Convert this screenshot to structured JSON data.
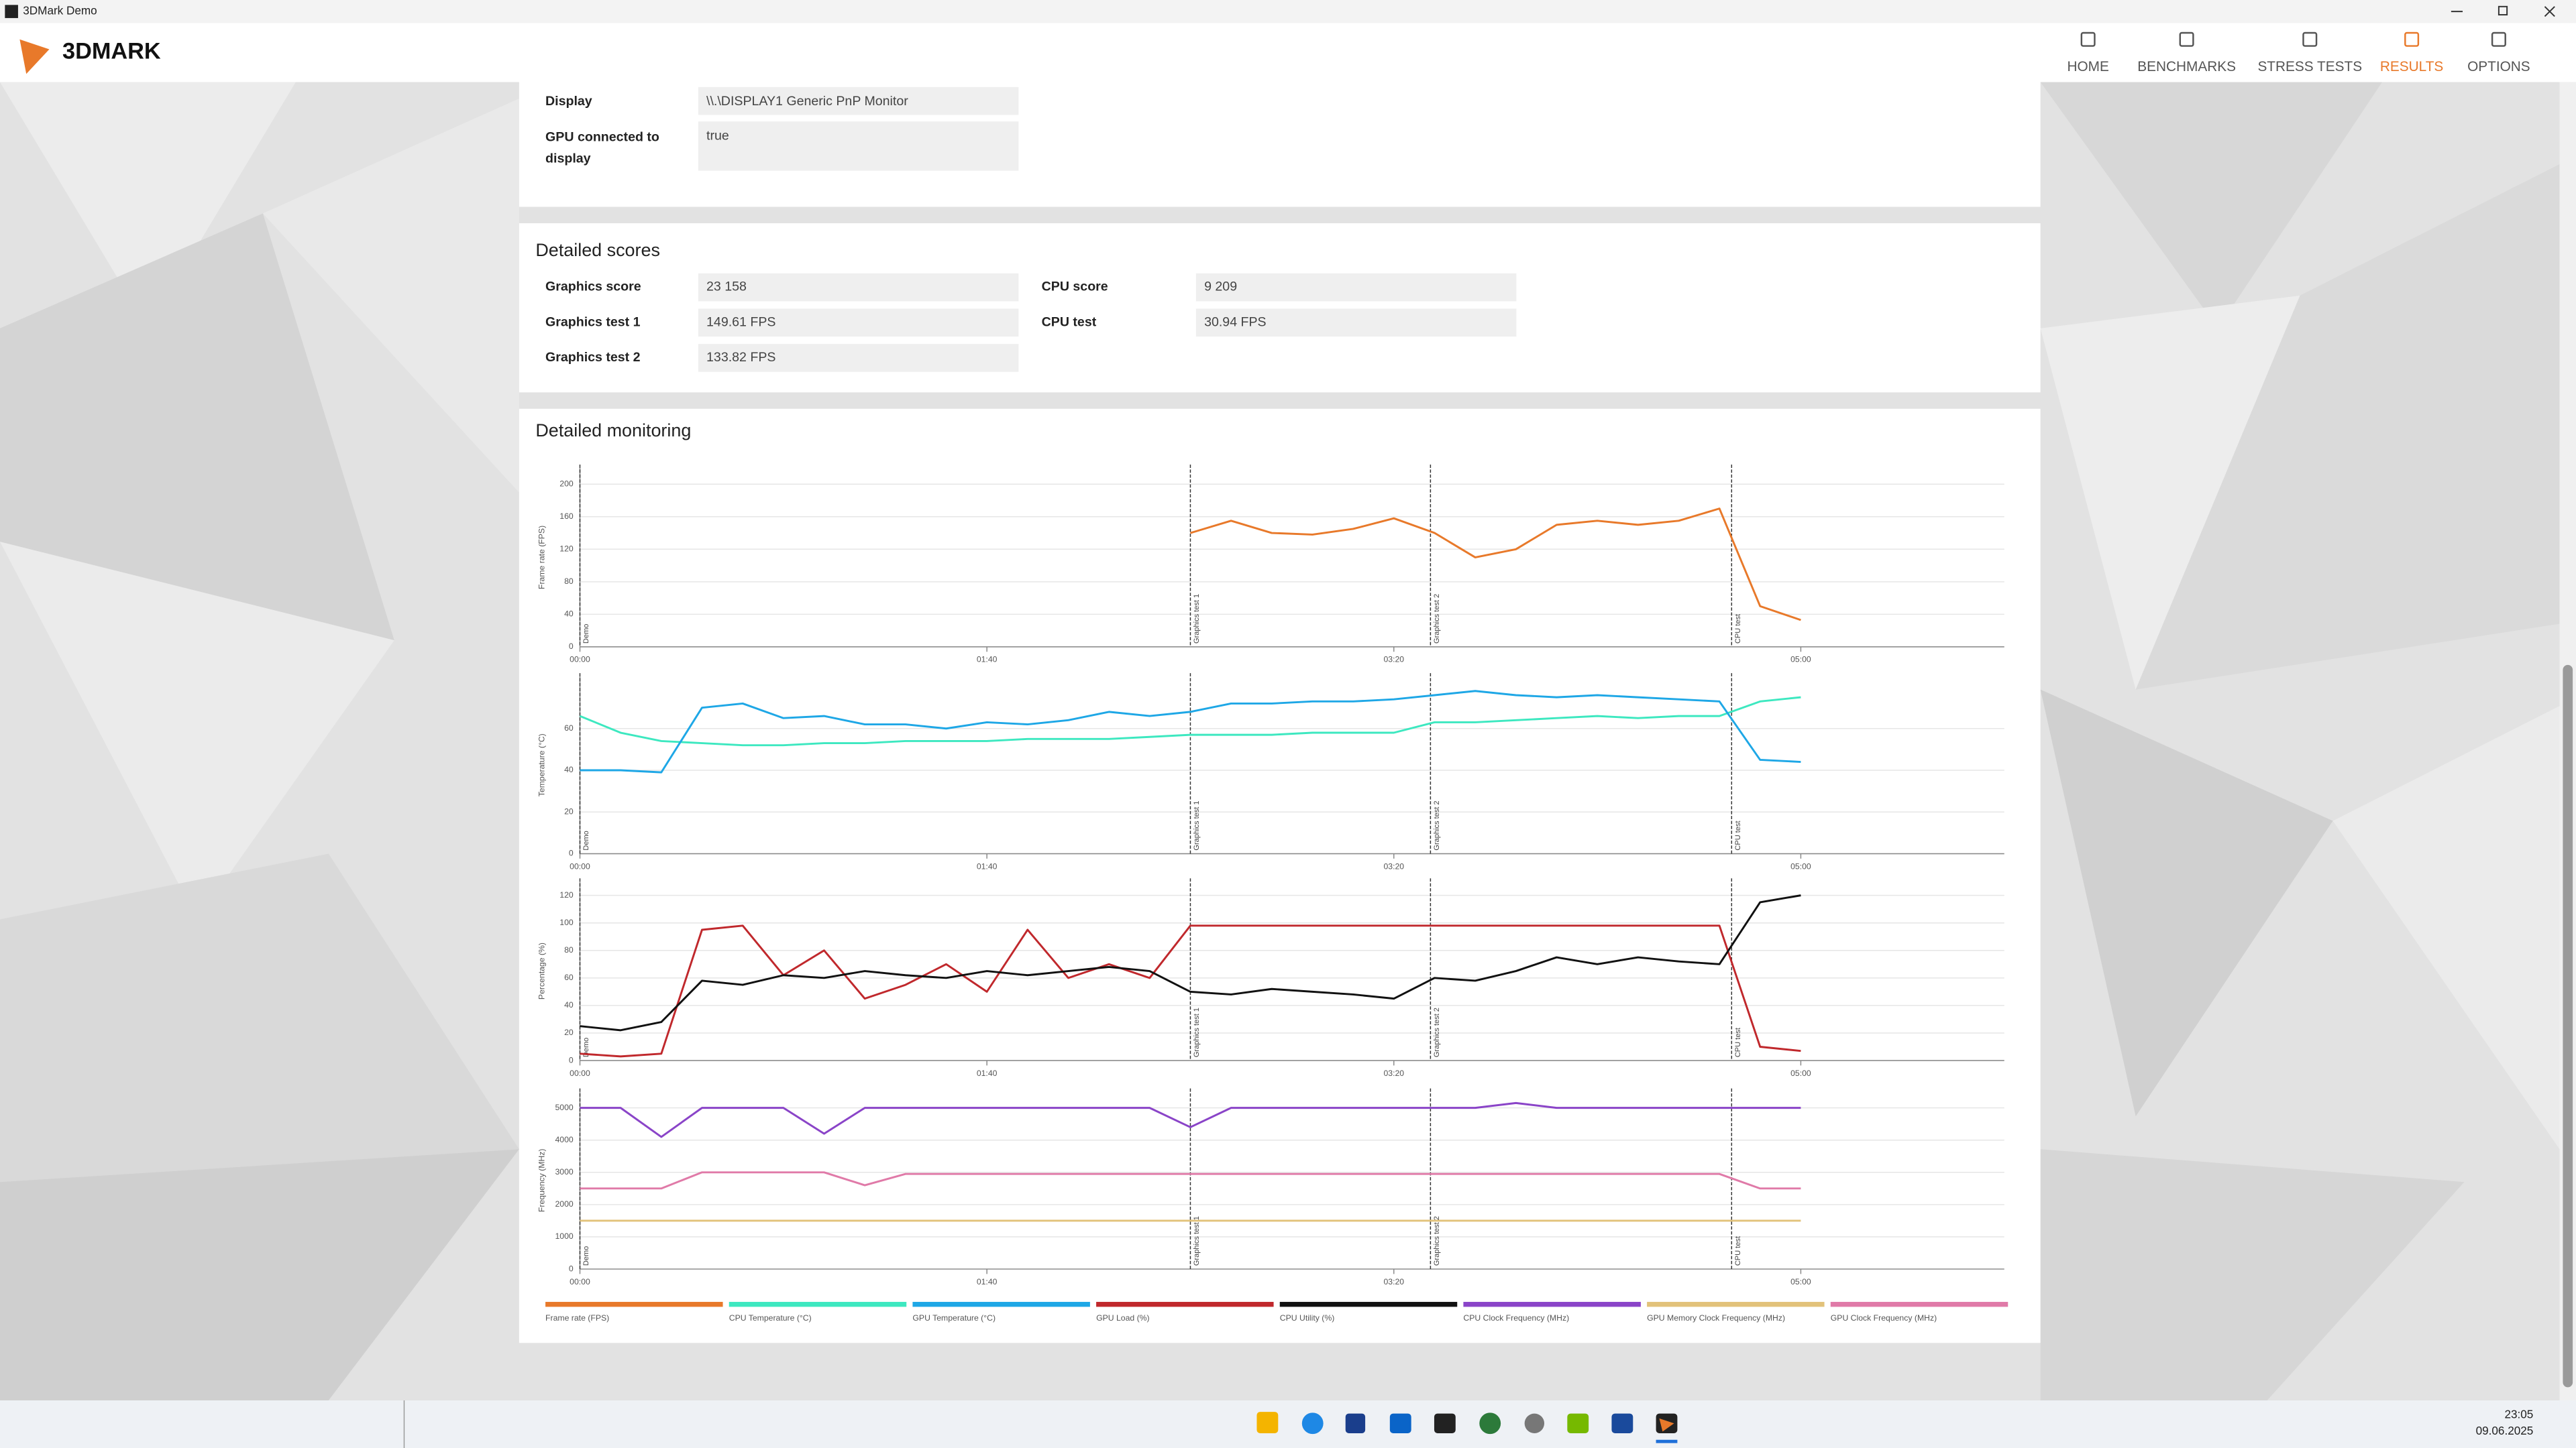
{
  "window": {
    "title": "3DMark Demo"
  },
  "logo": "3DMARK",
  "nav": [
    "HOME",
    "BENCHMARKS",
    "STRESS TESTS",
    "RESULTS",
    "OPTIONS"
  ],
  "nav_active_index": 3,
  "system_info": {
    "rows": [
      [
        "Display",
        "\\\\.\\DISPLAY1 Generic PnP Monitor"
      ],
      [
        "GPU connected to display",
        "true"
      ]
    ]
  },
  "detailed_scores": {
    "title": "Detailed scores",
    "left": [
      [
        "Graphics score",
        "23 158"
      ],
      [
        "Graphics test 1",
        "149.61 FPS"
      ],
      [
        "Graphics test 2",
        "133.82 FPS"
      ]
    ],
    "right": [
      [
        "CPU score",
        "9 209"
      ],
      [
        "CPU test",
        "30.94 FPS"
      ]
    ]
  },
  "monitoring_title": "Detailed monitoring",
  "chart_data": [
    {
      "type": "line",
      "ylabel": "Frame rate (FPS)",
      "grid": true,
      "x": [
        0,
        10,
        20,
        30,
        40,
        50,
        60,
        70,
        80,
        90,
        100,
        110,
        120,
        130,
        140,
        150,
        160,
        170,
        180,
        190,
        200,
        210,
        220,
        230,
        240,
        250,
        260,
        270,
        280,
        290,
        300
      ],
      "xlim": [
        0,
        350
      ],
      "xticks": [
        {
          "value": 0,
          "label": "00:00"
        },
        {
          "value": 100,
          "label": "01:40"
        },
        {
          "value": 200,
          "label": "03:20"
        },
        {
          "value": 300,
          "label": "05:00"
        }
      ],
      "ylim": [
        0,
        220
      ],
      "yticks": [
        0,
        40,
        80,
        120,
        160,
        200
      ],
      "markers": [
        {
          "label": "Demo",
          "x": 0
        },
        {
          "label": "Graphics test 1",
          "x": 150
        },
        {
          "label": "Graphics test 2",
          "x": 209
        },
        {
          "label": "CPU test",
          "x": 283
        }
      ],
      "series": [
        {
          "name": "Frame rate (FPS)",
          "color": "#e8792a",
          "values": [
            null,
            null,
            null,
            null,
            null,
            null,
            null,
            null,
            null,
            null,
            null,
            null,
            null,
            null,
            null,
            140,
            155,
            140,
            138,
            145,
            158,
            140,
            110,
            120,
            150,
            155,
            150,
            155,
            170,
            50,
            33
          ]
        }
      ]
    },
    {
      "type": "line",
      "ylabel": "Temperature (°C)",
      "grid": true,
      "x": [
        0,
        10,
        20,
        30,
        40,
        50,
        60,
        70,
        80,
        90,
        100,
        110,
        120,
        130,
        140,
        150,
        160,
        170,
        180,
        190,
        200,
        210,
        220,
        230,
        240,
        250,
        260,
        270,
        280,
        290,
        300
      ],
      "xlim": [
        0,
        350
      ],
      "xticks": [
        {
          "value": 0,
          "label": "00:00"
        },
        {
          "value": 100,
          "label": "01:40"
        },
        {
          "value": 200,
          "label": "03:20"
        },
        {
          "value": 300,
          "label": "05:00"
        }
      ],
      "ylim": [
        0,
        85
      ],
      "yticks": [
        0,
        20,
        40,
        60
      ],
      "markers": [
        {
          "label": "Demo",
          "x": 0
        },
        {
          "label": "Graphics test 1",
          "x": 150
        },
        {
          "label": "Graphics test 2",
          "x": 209
        },
        {
          "label": "CPU test",
          "x": 283
        }
      ],
      "series": [
        {
          "name": "CPU Temperature (°C)",
          "color": "#3de8c0",
          "values": [
            66,
            58,
            54,
            53,
            52,
            52,
            53,
            53,
            54,
            54,
            54,
            55,
            55,
            55,
            56,
            57,
            57,
            57,
            58,
            58,
            58,
            63,
            63,
            64,
            65,
            66,
            65,
            66,
            66,
            73,
            75
          ]
        },
        {
          "name": "GPU Temperature (°C)",
          "color": "#1ea7e6",
          "values": [
            40,
            40,
            39,
            70,
            72,
            65,
            66,
            62,
            62,
            60,
            63,
            62,
            64,
            68,
            66,
            68,
            72,
            72,
            73,
            73,
            74,
            76,
            78,
            76,
            75,
            76,
            75,
            74,
            73,
            45,
            44
          ]
        }
      ]
    },
    {
      "type": "line",
      "ylabel": "Percentage (%)",
      "grid": true,
      "x": [
        0,
        10,
        20,
        30,
        40,
        50,
        60,
        70,
        80,
        90,
        100,
        110,
        120,
        130,
        140,
        150,
        160,
        170,
        180,
        190,
        200,
        210,
        220,
        230,
        240,
        250,
        260,
        270,
        280,
        290,
        300
      ],
      "xlim": [
        0,
        350
      ],
      "xticks": [
        {
          "value": 0,
          "label": "00:00"
        },
        {
          "value": 100,
          "label": "01:40"
        },
        {
          "value": 200,
          "label": "03:20"
        },
        {
          "value": 300,
          "label": "05:00"
        }
      ],
      "ylim": [
        0,
        130
      ],
      "yticks": [
        0,
        20,
        40,
        60,
        80,
        100,
        120
      ],
      "markers": [
        {
          "label": "Demo",
          "x": 0
        },
        {
          "label": "Graphics test 1",
          "x": 150
        },
        {
          "label": "Graphics test 2",
          "x": 209
        },
        {
          "label": "CPU test",
          "x": 283
        }
      ],
      "series": [
        {
          "name": "GPU Load (%)",
          "color": "#c0282c",
          "values": [
            5,
            3,
            5,
            95,
            98,
            62,
            80,
            45,
            55,
            70,
            50,
            95,
            60,
            70,
            60,
            98,
            98,
            98,
            98,
            98,
            98,
            98,
            98,
            98,
            98,
            98,
            98,
            98,
            98,
            10,
            7
          ]
        },
        {
          "name": "CPU Utility (%)",
          "color": "#111111",
          "values": [
            25,
            22,
            28,
            58,
            55,
            62,
            60,
            65,
            62,
            60,
            65,
            62,
            65,
            68,
            65,
            50,
            48,
            52,
            50,
            48,
            45,
            60,
            58,
            65,
            75,
            70,
            75,
            72,
            70,
            115,
            120
          ]
        }
      ]
    },
    {
      "type": "line",
      "ylabel": "Frequency (MHz)",
      "grid": true,
      "x": [
        0,
        10,
        20,
        30,
        40,
        50,
        60,
        70,
        80,
        90,
        100,
        110,
        120,
        130,
        140,
        150,
        160,
        170,
        180,
        190,
        200,
        210,
        220,
        230,
        240,
        250,
        260,
        270,
        280,
        290,
        300
      ],
      "xlim": [
        0,
        350
      ],
      "xticks": [
        {
          "value": 0,
          "label": "00:00"
        },
        {
          "value": 100,
          "label": "01:40"
        },
        {
          "value": 200,
          "label": "03:20"
        },
        {
          "value": 300,
          "label": "05:00"
        }
      ],
      "ylim": [
        0,
        5500
      ],
      "yticks": [
        0,
        1000,
        2000,
        3000,
        4000,
        5000
      ],
      "markers": [
        {
          "label": "Demo",
          "x": 0
        },
        {
          "label": "Graphics test 1",
          "x": 150
        },
        {
          "label": "Graphics test 2",
          "x": 209
        },
        {
          "label": "CPU test",
          "x": 283
        }
      ],
      "series": [
        {
          "name": "CPU Clock Frequency (MHz)",
          "color": "#8a44c8",
          "values": [
            5000,
            5000,
            4100,
            5000,
            5000,
            5000,
            4200,
            5000,
            5000,
            5000,
            5000,
            5000,
            5000,
            5000,
            5000,
            4400,
            5000,
            5000,
            5000,
            5000,
            5000,
            5000,
            5000,
            5150,
            5000,
            5000,
            5000,
            5000,
            5000,
            5000,
            5000
          ]
        },
        {
          "name": "GPU Memory Clock Frequency (MHz)",
          "color": "#e2c27a",
          "values": [
            1500,
            1500,
            1500,
            1500,
            1500,
            1500,
            1500,
            1500,
            1500,
            1500,
            1500,
            1500,
            1500,
            1500,
            1500,
            1500,
            1500,
            1500,
            1500,
            1500,
            1500,
            1500,
            1500,
            1500,
            1500,
            1500,
            1500,
            1500,
            1500,
            1500,
            1500
          ]
        },
        {
          "name": "GPU Clock Frequency (MHz)",
          "color": "#e07aa8",
          "values": [
            2500,
            2500,
            2500,
            3000,
            3000,
            3000,
            3000,
            2600,
            2950,
            2950,
            2950,
            2950,
            2950,
            2950,
            2950,
            2950,
            2950,
            2950,
            2950,
            2950,
            2950,
            2950,
            2950,
            2950,
            2950,
            2950,
            2950,
            2950,
            2950,
            2500,
            2500
          ]
        }
      ]
    }
  ],
  "taskbar": {
    "time": "23:05",
    "date": "09.06.2025"
  }
}
